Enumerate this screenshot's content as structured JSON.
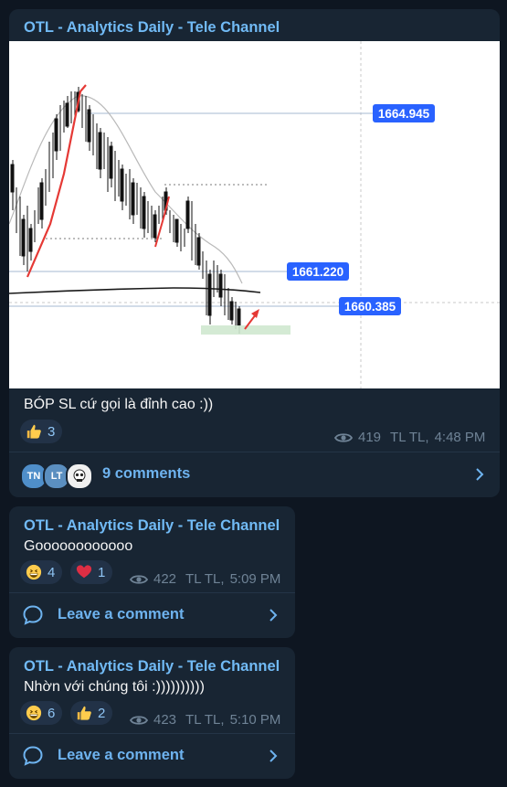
{
  "post1": {
    "sender": "OTL - Analytics Daily - Tele Channel",
    "caption": "BÓP SL cứ gọi là đỉnh cao :))",
    "chart_data": {
      "type": "line",
      "title": "",
      "xlabel": "",
      "ylabel": "",
      "price_levels": [
        {
          "value": 1664.945,
          "label": "1664.945"
        },
        {
          "value": 1661.22,
          "label": "1661.220"
        },
        {
          "value": 1660.385,
          "label": "1660.385"
        }
      ],
      "grid": false,
      "colors": {
        "candles": "#000000",
        "trend_arrow": "#e53935",
        "price_label_bg": "#2962ff",
        "level_lines": "#8fa9cf",
        "zone": "#cfe8cf"
      }
    },
    "reactions": [
      {
        "emoji": "thumbs-up",
        "count": "3"
      }
    ],
    "views": "419",
    "author": "TL TL,",
    "time": "4:48 PM",
    "avatars": [
      {
        "initials": "TN",
        "color": "#4f8ec9"
      },
      {
        "initials": "LT",
        "color": "#5b8fc0"
      },
      {
        "initials": "",
        "color": "#f0f0f0"
      }
    ],
    "comments_label": "9 comments"
  },
  "post2": {
    "sender": "OTL - Analytics Daily - Tele Channel",
    "text": "Goooooooooooo",
    "reactions": [
      {
        "emoji": "grinning",
        "count": "4"
      },
      {
        "emoji": "heart",
        "count": "1"
      }
    ],
    "views": "422",
    "author": "TL TL,",
    "time": "5:09 PM",
    "comment_label": "Leave a comment"
  },
  "post3": {
    "sender": "OTL - Analytics Daily - Tele Channel",
    "text": "Nhờn với chúng tôi :))))))))))",
    "reactions": [
      {
        "emoji": "grinning",
        "count": "6"
      },
      {
        "emoji": "thumbs-up",
        "count": "2"
      }
    ],
    "views": "423",
    "author": "TL TL,",
    "time": "5:10 PM",
    "comment_label": "Leave a comment"
  },
  "colors": {
    "background": "#0e1621",
    "bubble": "#182533",
    "sender": "#71baf5",
    "accent": "#6eb3ef",
    "muted": "#6f8396"
  }
}
